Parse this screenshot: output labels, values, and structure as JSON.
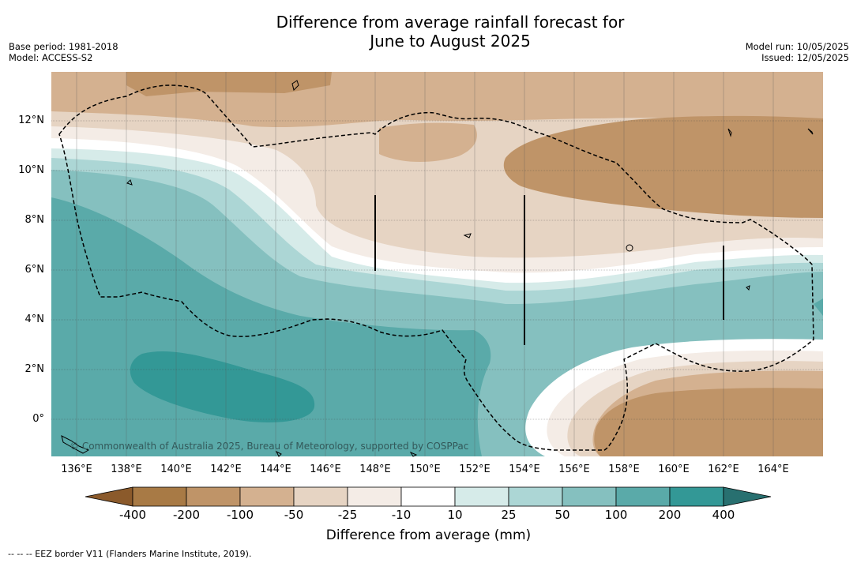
{
  "header": {
    "title_line1": "Difference from average rainfall forecast for",
    "title_line2": "June to August 2025",
    "base_period": "Base period: 1981-2018",
    "model": "Model: ACCESS-S2",
    "model_run": "Model run: 10/05/2025",
    "issued": "Issued: 12/05/2025"
  },
  "map": {
    "lat_labels": [
      "12°N",
      "10°N",
      "8°N",
      "6°N",
      "4°N",
      "2°N",
      "0°"
    ],
    "lon_labels": [
      "136°E",
      "138°E",
      "140°E",
      "142°E",
      "144°E",
      "146°E",
      "148°E",
      "150°E",
      "152°E",
      "154°E",
      "156°E",
      "158°E",
      "160°E",
      "162°E",
      "164°E"
    ],
    "credit": "© Commonwealth of Australia 2025, Bureau of Meteorology, supported by COSPPac"
  },
  "colorbar": {
    "title": "Difference from average (mm)",
    "ticks": [
      "-400",
      "-200",
      "-100",
      "-50",
      "-25",
      "-10",
      "10",
      "25",
      "50",
      "100",
      "200",
      "400"
    ],
    "colors": [
      "#a87a45",
      "#bf9468",
      "#d4b190",
      "#e6d4c3",
      "#f4ece6",
      "#ffffff",
      "#d6ebe9",
      "#acd6d5",
      "#85c0bf",
      "#5aaaa9",
      "#339896",
      "#287070"
    ]
  },
  "footnote": "-- -- -- EEZ border V11 (Flanders Marine Institute, 2019)."
}
